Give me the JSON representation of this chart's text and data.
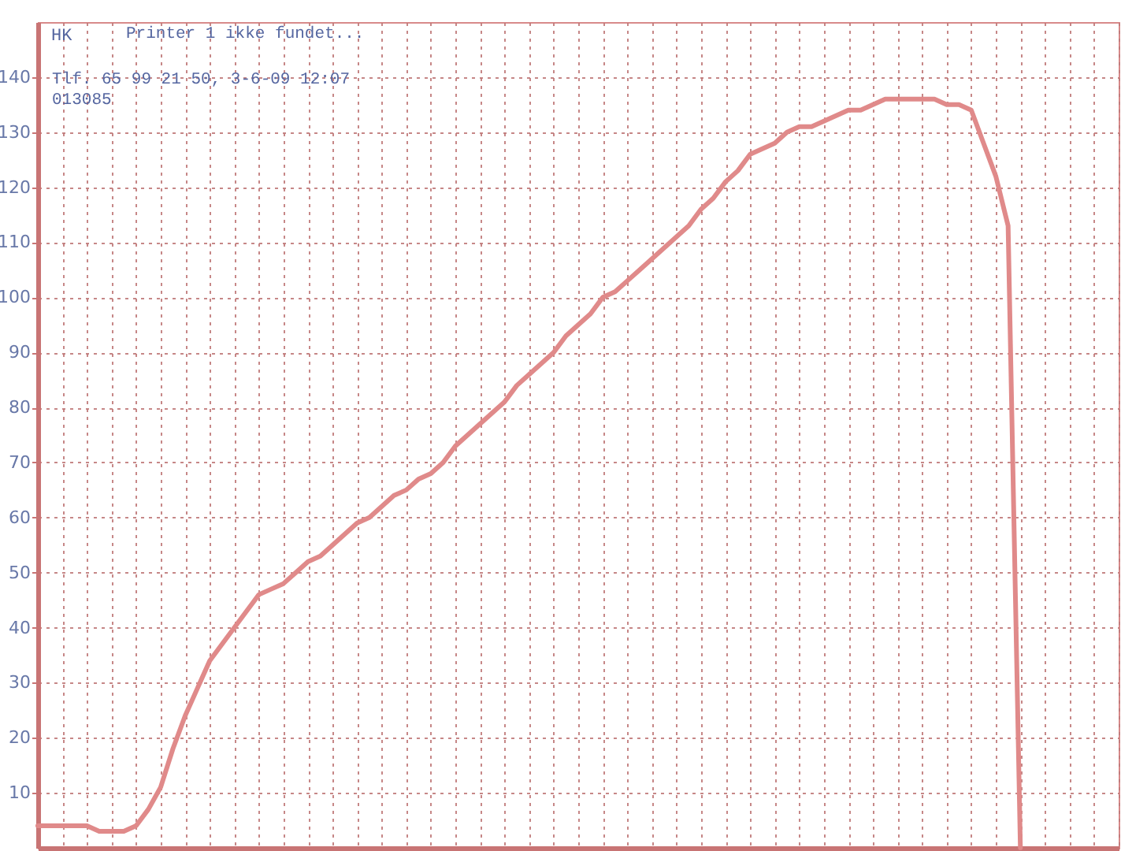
{
  "chart_data": {
    "type": "line",
    "ylabel": "HK",
    "annotations": [
      "Printer 1 ikke fundet...",
      "Tlf. 65 99 21 50, 3-6-09 12:07",
      "013085"
    ],
    "categories": [
      null,
      null,
      null,
      null,
      null,
      null,
      null,
      null,
      null,
      null,
      null,
      null,
      null,
      null,
      null,
      null,
      null,
      null,
      null,
      null,
      null,
      null,
      null,
      null,
      null,
      null,
      null,
      null,
      null,
      null,
      null,
      null,
      null,
      null,
      null,
      null,
      null,
      null,
      null,
      null,
      null,
      null,
      null,
      null,
      null,
      null,
      null,
      null,
      null,
      null,
      null,
      null,
      null,
      null,
      null,
      null,
      null,
      null,
      null,
      null,
      null,
      null,
      null,
      null,
      null,
      null,
      null,
      null,
      null,
      null,
      null,
      null,
      null,
      null,
      null,
      null,
      null,
      null,
      null,
      null,
      null,
      null,
      null,
      null,
      null,
      null,
      null,
      null,
      null
    ],
    "series": [
      {
        "color": "#e08a8a",
        "values": [
          4,
          4,
          4,
          4,
          4,
          3,
          3,
          3,
          4,
          7,
          11,
          18,
          24,
          29,
          34,
          37,
          40,
          43,
          46,
          47,
          48,
          50,
          52,
          53,
          55,
          57,
          59,
          60,
          62,
          64,
          65,
          67,
          68,
          70,
          73,
          75,
          77,
          79,
          81,
          84,
          86,
          88,
          90,
          93,
          95,
          97,
          100,
          101,
          103,
          105,
          107,
          109,
          111,
          113,
          116,
          118,
          121,
          123,
          126,
          127,
          128,
          130,
          131,
          131,
          132,
          133,
          134,
          134,
          135,
          136,
          136,
          136,
          136,
          136,
          135,
          135,
          134,
          128,
          122,
          113,
          0,
          null,
          null,
          null,
          null,
          null,
          null,
          null,
          null
        ]
      }
    ],
    "ylim": [
      0,
      150
    ],
    "yticks": [
      10,
      20,
      30,
      40,
      50,
      60,
      70,
      80,
      90,
      100,
      110,
      120,
      130,
      140
    ],
    "grid": true,
    "tick_labels": "y"
  }
}
